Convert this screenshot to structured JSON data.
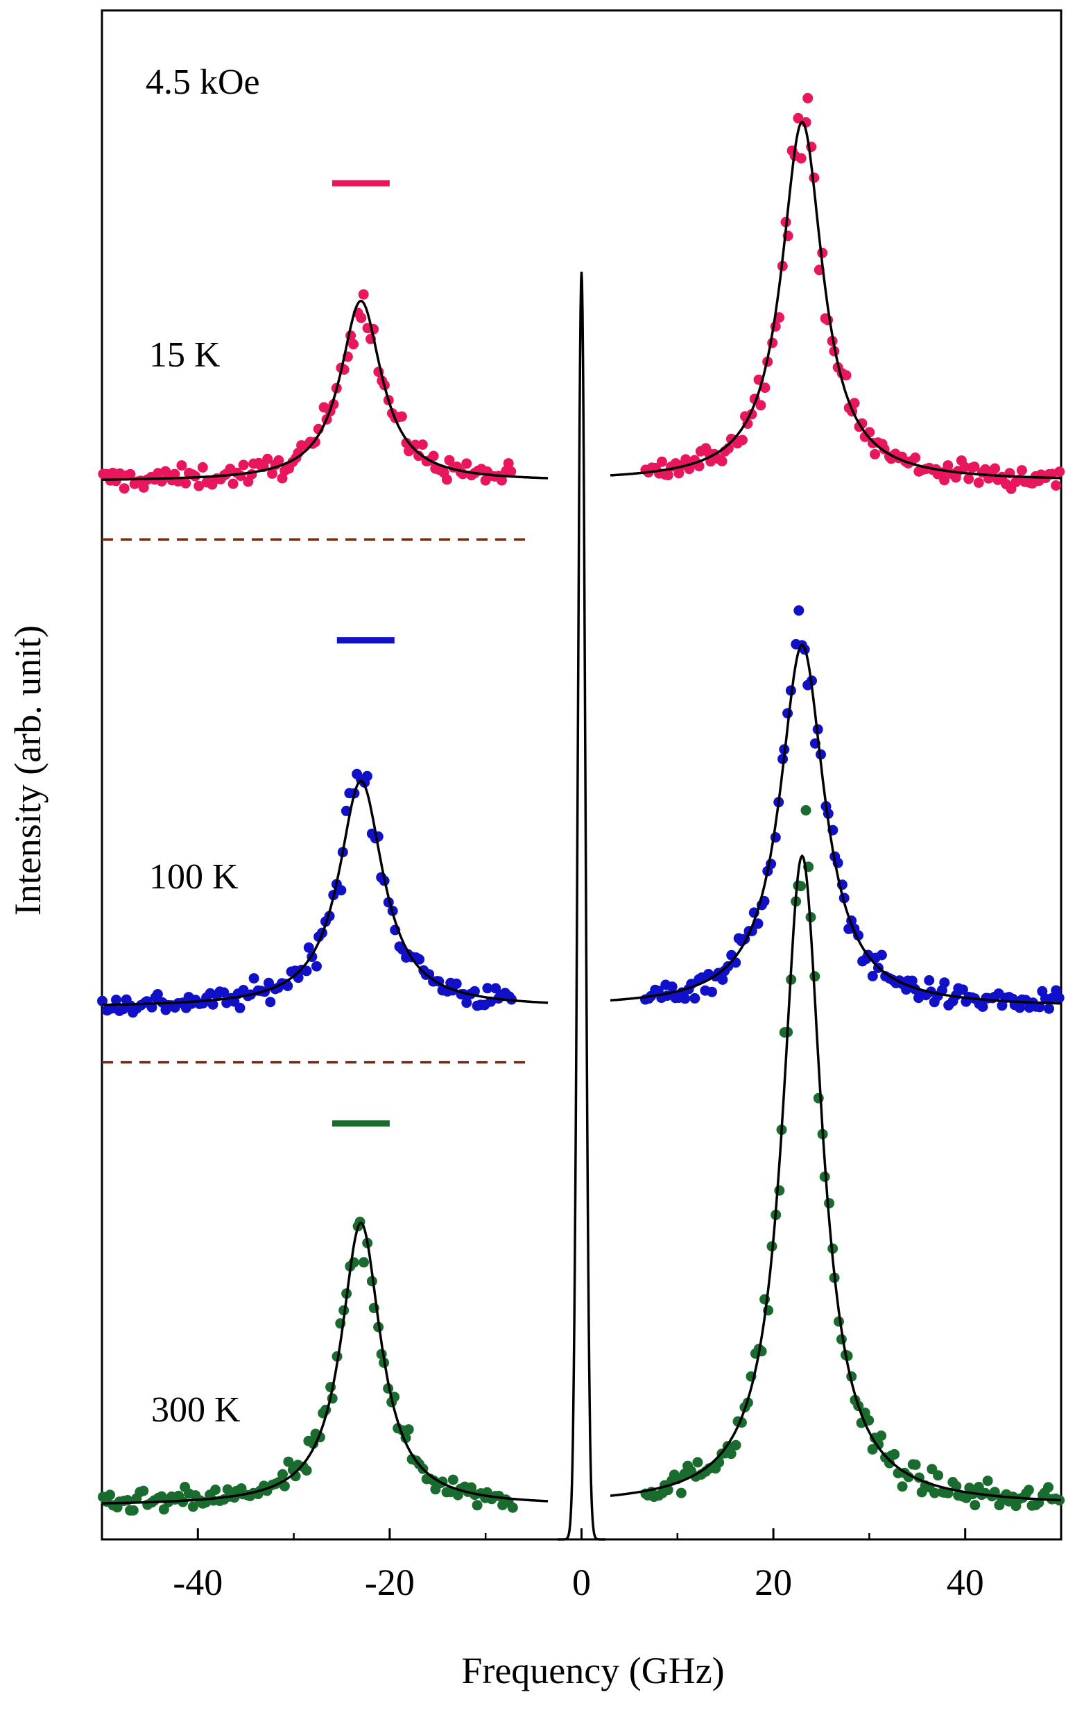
{
  "chart_data": {
    "type": "scatter",
    "title": "",
    "xlabel": "Frequency (GHz)",
    "ylabel": "Intensity (arb. unit)",
    "xlim": [
      -50,
      50
    ],
    "ylim": [
      0,
      10
    ],
    "xticks": [
      -40,
      -20,
      0,
      20,
      40
    ],
    "xtick_labels": [
      "-40",
      "-20",
      "0",
      "20",
      "40"
    ],
    "y_ticks_shown": false,
    "field_label": "4.5 kOe",
    "peak_frequency_ghz": 23,
    "series": [
      {
        "name": "15 K",
        "color": "#e8175d",
        "marker_color": "#e8175d",
        "baseline": 6.92,
        "stokes_height": 1.18,
        "anti_stokes_height": 2.35,
        "width_ghz": 2.6,
        "bar_center_ghz": -23,
        "bar_level": 8.87
      },
      {
        "name": "100 K",
        "color": "#1010c8",
        "marker_color": "#1010c8",
        "baseline": 3.48,
        "stokes_height": 1.48,
        "anti_stokes_height": 2.37,
        "width_ghz": 2.8,
        "bar_center_ghz": -22.5,
        "bar_level": 5.88
      },
      {
        "name": "300 K",
        "color": "#1a6b2e",
        "marker_color": "#1a6b2e",
        "baseline": 0.22,
        "stokes_height": 1.85,
        "anti_stokes_height": 4.25,
        "width_ghz": 2.5,
        "bar_center_ghz": -23,
        "bar_level": 2.72
      }
    ],
    "separators": [
      {
        "level": 6.54,
        "color": "#7a2a10"
      },
      {
        "level": 3.12,
        "color": "#7a2a10"
      }
    ],
    "central_peak": {
      "center_ghz": 0,
      "height": 8.29,
      "sigma_ghz": 0.4,
      "color": "#000000"
    },
    "fit_line_color": "#000000"
  }
}
